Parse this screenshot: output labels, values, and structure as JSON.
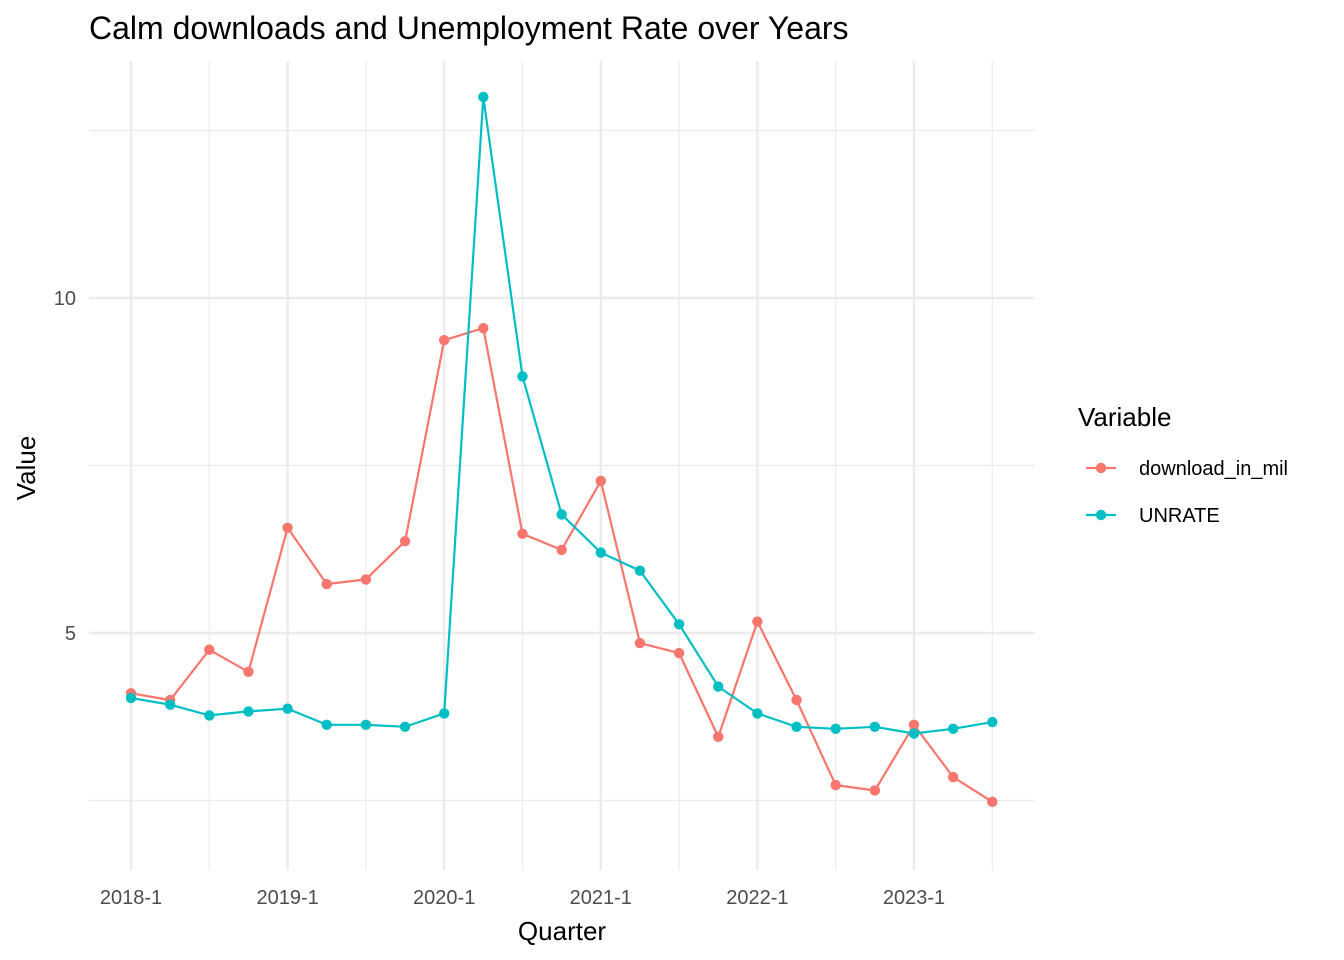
{
  "chart_data": {
    "type": "line",
    "title": "Calm downloads and Unemployment Rate over Years",
    "xlabel": "Quarter",
    "ylabel": "Value",
    "x": [
      "2018-1",
      "2018-2",
      "2018-3",
      "2018-4",
      "2019-1",
      "2019-2",
      "2019-3",
      "2019-4",
      "2020-1",
      "2020-2",
      "2020-3",
      "2020-4",
      "2021-1",
      "2021-2",
      "2021-3",
      "2021-4",
      "2022-1",
      "2022-2",
      "2022-3",
      "2022-4",
      "2023-1",
      "2023-2",
      "2023-3"
    ],
    "x_tick_labels": [
      "2018-1",
      "2019-1",
      "2020-1",
      "2021-1",
      "2022-1",
      "2023-1"
    ],
    "y_tick_labels": [
      5,
      10
    ],
    "ylim": [
      1.97,
      13.69
    ],
    "grid": true,
    "legend": {
      "title": "Variable",
      "position": "right"
    },
    "series": [
      {
        "name": "download_in_mil",
        "color": "#F8766D",
        "values": [
          4.1,
          4.0,
          4.75,
          4.42,
          6.57,
          5.73,
          5.8,
          6.37,
          9.37,
          9.55,
          6.48,
          6.24,
          7.27,
          4.85,
          4.7,
          3.45,
          5.17,
          4.0,
          2.73,
          2.65,
          3.63,
          2.85,
          2.48
        ]
      },
      {
        "name": "UNRATE",
        "color": "#00BFC4",
        "values": [
          4.03,
          3.93,
          3.77,
          3.83,
          3.87,
          3.63,
          3.63,
          3.6,
          3.8,
          13.0,
          8.83,
          6.77,
          6.2,
          5.93,
          5.13,
          4.2,
          3.8,
          3.6,
          3.57,
          3.6,
          3.5,
          3.57,
          3.67
        ]
      }
    ]
  }
}
